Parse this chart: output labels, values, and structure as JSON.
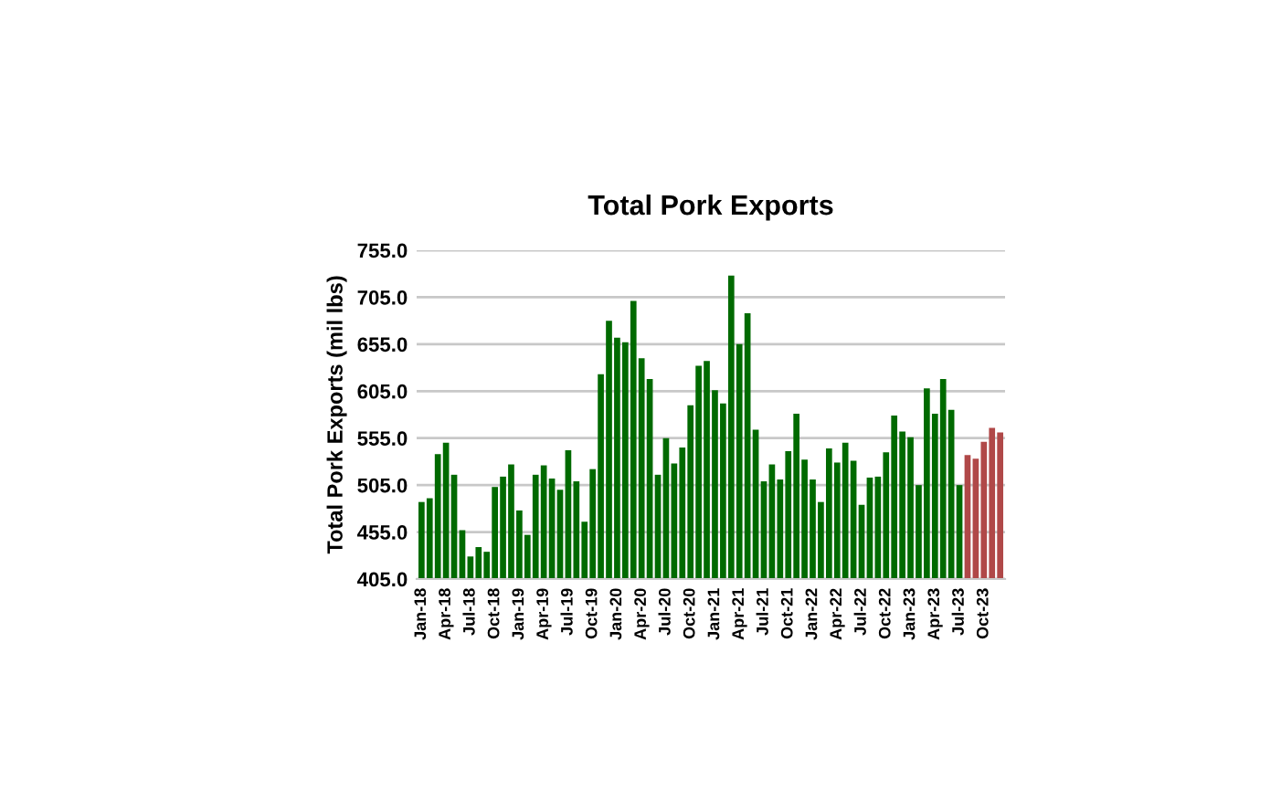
{
  "chart_data": {
    "type": "bar",
    "title": "Total Pork Exports",
    "ylabel": "Total Pork Exports (mil lbs)",
    "categories": [
      "Jan-18",
      null,
      null,
      "Apr-18",
      null,
      null,
      "Jul-18",
      null,
      null,
      "Oct-18",
      null,
      null,
      "Jan-19",
      null,
      null,
      "Apr-19",
      null,
      null,
      "Jul-19",
      null,
      null,
      "Oct-19",
      null,
      null,
      "Jan-20",
      null,
      null,
      "Apr-20",
      null,
      null,
      "Jul-20",
      null,
      null,
      "Oct-20",
      null,
      null,
      "Jan-21",
      null,
      null,
      "Apr-21",
      null,
      null,
      "Jul-21",
      null,
      null,
      "Oct-21",
      null,
      null,
      "Jan-22",
      null,
      null,
      "Apr-22",
      null,
      null,
      "Jul-22",
      null,
      null,
      "Oct-22",
      null,
      null,
      "Jan-23",
      null,
      null,
      "Apr-23",
      null,
      null,
      "Jul-23",
      null,
      null,
      "Oct-23",
      null,
      null
    ],
    "values": [
      487,
      491,
      538,
      550,
      516,
      457,
      429,
      439,
      434,
      503,
      514,
      527,
      478,
      452,
      516,
      526,
      512,
      500,
      542,
      509,
      466,
      522,
      623,
      680,
      662,
      657,
      701,
      640,
      618,
      516,
      555,
      528,
      545,
      590,
      632,
      637,
      606,
      592,
      728,
      655,
      688,
      564,
      509,
      527,
      511,
      541,
      581,
      532,
      511,
      487,
      544,
      529,
      550,
      531,
      484,
      513,
      514,
      540,
      579,
      562,
      556,
      505,
      608,
      581,
      618,
      585,
      505,
      537,
      533,
      551,
      566,
      561
    ],
    "colors": [
      "#006a00",
      "#006a00",
      "#006a00",
      "#006a00",
      "#006a00",
      "#006a00",
      "#006a00",
      "#006a00",
      "#006a00",
      "#006a00",
      "#006a00",
      "#006a00",
      "#006a00",
      "#006a00",
      "#006a00",
      "#006a00",
      "#006a00",
      "#006a00",
      "#006a00",
      "#006a00",
      "#006a00",
      "#006a00",
      "#006a00",
      "#006a00",
      "#006a00",
      "#006a00",
      "#006a00",
      "#006a00",
      "#006a00",
      "#006a00",
      "#006a00",
      "#006a00",
      "#006a00",
      "#006a00",
      "#006a00",
      "#006a00",
      "#006a00",
      "#006a00",
      "#006a00",
      "#006a00",
      "#006a00",
      "#006a00",
      "#006a00",
      "#006a00",
      "#006a00",
      "#006a00",
      "#006a00",
      "#006a00",
      "#006a00",
      "#006a00",
      "#006a00",
      "#006a00",
      "#006a00",
      "#006a00",
      "#006a00",
      "#006a00",
      "#006a00",
      "#006a00",
      "#006a00",
      "#006a00",
      "#006a00",
      "#006a00",
      "#006a00",
      "#006a00",
      "#006a00",
      "#006a00",
      "#006a00",
      "#b04848",
      "#b04848",
      "#b04848",
      "#b04848",
      "#b04848"
    ],
    "ylim": [
      405,
      755
    ],
    "yticks": [
      {
        "value": 405,
        "label": "405.0"
      },
      {
        "value": 455,
        "label": "455.0"
      },
      {
        "value": 505,
        "label": "505.0"
      },
      {
        "value": 555,
        "label": "555.0"
      },
      {
        "value": 605,
        "label": "605.0"
      },
      {
        "value": 655,
        "label": "655.0"
      },
      {
        "value": 705,
        "label": "705.0"
      },
      {
        "value": 755,
        "label": "755.0"
      }
    ],
    "grid": "y"
  }
}
